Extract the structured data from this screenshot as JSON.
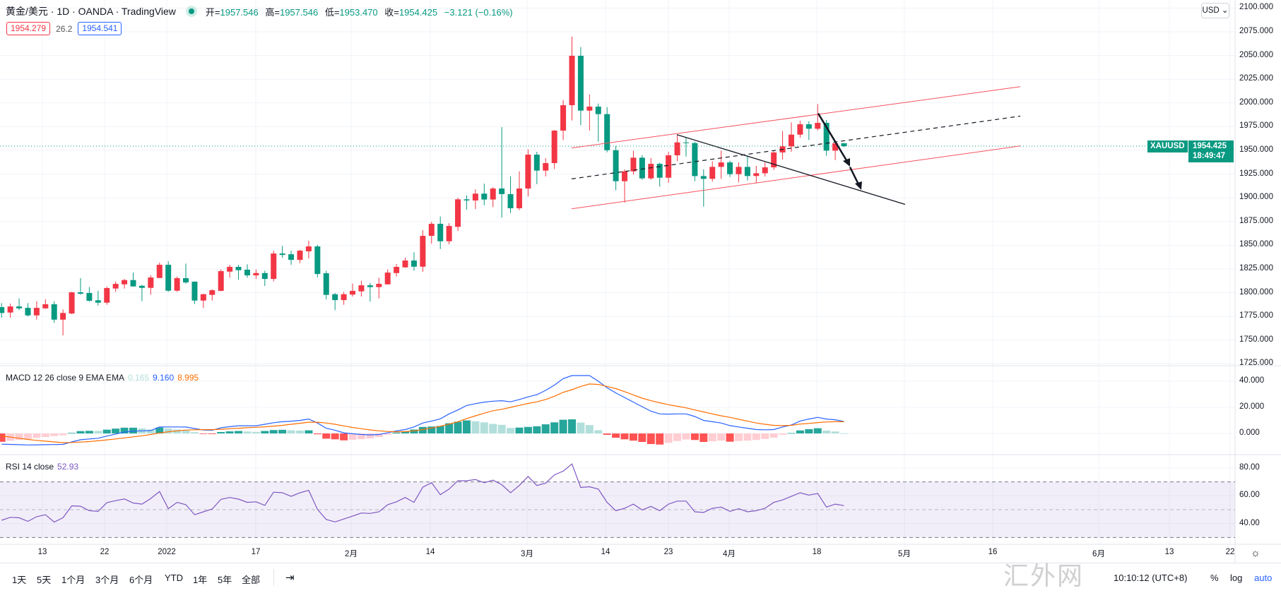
{
  "header": {
    "title": "黄金/美元 · 1D · OANDA · TradingView",
    "open_label": "开=",
    "open": "1957.546",
    "high_label": "高=",
    "high": "1957.546",
    "low_label": "低=",
    "low": "1953.470",
    "close_label": "收=",
    "close": "1954.425",
    "change": "−3.121 (−0.16%)",
    "bid": "1954.279",
    "spread": "26.2",
    "ask": "1954.541",
    "market_status_icon": "market-open-dot"
  },
  "price_axis": {
    "currency": "USD",
    "labels": [
      "2100.000",
      "2075.000",
      "2050.000",
      "2025.000",
      "2000.000",
      "1975.000",
      "1950.000",
      "1925.000",
      "1900.000",
      "1875.000",
      "1850.000",
      "1825.000",
      "1800.000",
      "1775.000",
      "1750.000",
      "1725.000"
    ],
    "symbol_tag": "XAUUSD",
    "last_price": "1954.425",
    "countdown": "18:49:47"
  },
  "macd": {
    "title": "MACD 12 26 close 9 EMA EMA",
    "hist_value": "0.165",
    "macd_value": "9.160",
    "signal_value": "8.995",
    "axis_labels": [
      "40.000",
      "20.000",
      "0.000"
    ]
  },
  "rsi": {
    "title": "RSI 14 close",
    "value": "52.93",
    "axis_labels": [
      "80.00",
      "60.00",
      "40.00"
    ]
  },
  "time_axis": [
    "13",
    "22",
    "2022",
    "17",
    "2月",
    "14",
    "3月",
    "14",
    "23",
    "4月",
    "18",
    "5月",
    "16",
    "6月",
    "13",
    "22"
  ],
  "toolbar": {
    "ranges": [
      "1天",
      "5天",
      "1个月",
      "3个月",
      "6个月",
      "YTD",
      "1年",
      "5年",
      "全部"
    ],
    "date_range_icon": "⇥",
    "clock": "10:10:12 (UTC+8)",
    "percent": "%",
    "log": "log",
    "auto": "auto"
  },
  "watermark": "汇外网",
  "colors": {
    "up": "#F23645",
    "down": "#089981",
    "macd": "#2962FF",
    "signal": "#FF6D00",
    "rsi": "#7E57C2",
    "channel": "#F7525F"
  },
  "chart_data": {
    "type": "candlestick",
    "symbol": "XAUUSD",
    "interval": "1D",
    "ylim": [
      1715,
      2110
    ],
    "candles": [
      [
        1784.8,
        1789,
        1773.6,
        1778.6
      ],
      [
        1779.1,
        1788.5,
        1773.6,
        1785.5
      ],
      [
        1785.5,
        1794,
        1781.6,
        1783.5
      ],
      [
        1784,
        1789,
        1774.9,
        1776.1
      ],
      [
        1776.1,
        1791,
        1771.6,
        1784
      ],
      [
        1783.5,
        1793,
        1783,
        1787.8
      ],
      [
        1787.8,
        1791,
        1768.2,
        1771.6
      ],
      [
        1771.6,
        1782.3,
        1755,
        1778.6
      ],
      [
        1778.1,
        1800.9,
        1777.3,
        1800.4
      ],
      [
        1800.4,
        1815.3,
        1797.9,
        1798.9
      ],
      [
        1799.7,
        1805.9,
        1790.5,
        1791.5
      ],
      [
        1792,
        1801.9,
        1786.5,
        1789.5
      ],
      [
        1789.5,
        1806.4,
        1787.3,
        1804.9
      ],
      [
        1804.4,
        1811.8,
        1800.9,
        1809.3
      ],
      [
        1808.8,
        1814.5,
        1804.4,
        1813.3
      ],
      [
        1813.3,
        1821.2,
        1806.4,
        1806.6
      ],
      [
        1807.3,
        1808.3,
        1791,
        1805.1
      ],
      [
        1805.1,
        1818.3,
        1797.9,
        1816
      ],
      [
        1815.5,
        1831.7,
        1815.5,
        1829.4
      ],
      [
        1829.4,
        1833.1,
        1800.9,
        1802.1
      ],
      [
        1802.1,
        1817,
        1800.9,
        1815.3
      ],
      [
        1815.3,
        1830.7,
        1809.6,
        1810.8
      ],
      [
        1811.6,
        1812,
        1788,
        1791.7
      ],
      [
        1791.7,
        1798.8,
        1784,
        1798.4
      ],
      [
        1797.7,
        1803.4,
        1791.7,
        1802.6
      ],
      [
        1801.9,
        1824.5,
        1801.5,
        1822.7
      ],
      [
        1822.2,
        1829.4,
        1815.8,
        1827.2
      ],
      [
        1827.2,
        1829.4,
        1813.8,
        1823.7
      ],
      [
        1824.2,
        1829.9,
        1815.8,
        1818.3
      ],
      [
        1818.3,
        1824.5,
        1814.5,
        1820.7
      ],
      [
        1820.7,
        1823.2,
        1807.1,
        1814.5
      ],
      [
        1814.5,
        1844.3,
        1812,
        1841.3
      ],
      [
        1841.3,
        1849.3,
        1836.9,
        1839.8
      ],
      [
        1840.5,
        1844.3,
        1829.4,
        1834.6
      ],
      [
        1834.6,
        1845,
        1831.2,
        1844.3
      ],
      [
        1843.6,
        1854.7,
        1836.1,
        1848.8
      ],
      [
        1848.8,
        1850.5,
        1816.3,
        1819.7
      ],
      [
        1820.5,
        1823.2,
        1793,
        1797.7
      ],
      [
        1798.4,
        1799.7,
        1781.6,
        1792.2
      ],
      [
        1792.2,
        1800.9,
        1787.3,
        1798.4
      ],
      [
        1798,
        1809.6,
        1795.9,
        1801.9
      ],
      [
        1801.4,
        1812.6,
        1795.9,
        1807.8
      ],
      [
        1807.8,
        1810.3,
        1790.5,
        1805.9
      ],
      [
        1805.9,
        1815.8,
        1794,
        1809.3
      ],
      [
        1808.8,
        1824.5,
        1808.5,
        1821.2
      ],
      [
        1820.7,
        1830.2,
        1817,
        1827.2
      ],
      [
        1826.7,
        1836.9,
        1826.2,
        1833.9
      ],
      [
        1833.9,
        1842.6,
        1823.2,
        1827.4
      ],
      [
        1827.4,
        1865.9,
        1822,
        1859.9
      ],
      [
        1859.9,
        1874.8,
        1851.7,
        1872.6
      ],
      [
        1872.6,
        1880.3,
        1846,
        1854.2
      ],
      [
        1854.2,
        1873.3,
        1851,
        1870.3
      ],
      [
        1869.4,
        1900,
        1865,
        1898.4
      ],
      [
        1898.4,
        1902.6,
        1887.6,
        1897.2
      ],
      [
        1897.2,
        1908.8,
        1888.2,
        1904.4
      ],
      [
        1904.4,
        1915,
        1892.2,
        1898.2
      ],
      [
        1898.2,
        1911.3,
        1890.2,
        1909.8
      ],
      [
        1909.8,
        1974.5,
        1879,
        1903.9
      ],
      [
        1903.9,
        1922.5,
        1884,
        1889
      ],
      [
        1889,
        1927.9,
        1887,
        1909.8
      ],
      [
        1909.8,
        1951,
        1901.4,
        1945.5
      ],
      [
        1945.5,
        1948.5,
        1914.5,
        1928.7
      ],
      [
        1928.7,
        1941.8,
        1922.5,
        1936.6
      ],
      [
        1936.6,
        1971.5,
        1930.4,
        1970.8
      ],
      [
        1970.8,
        2003,
        1960.9,
        1997.6
      ],
      [
        1997.6,
        2070,
        1981.5,
        2049.7
      ],
      [
        2049.7,
        2058.9,
        1976.5,
        1991.9
      ],
      [
        1991.9,
        2008.8,
        1970.8,
        1996.1
      ],
      [
        1996.1,
        1999.3,
        1959.2,
        1988.2
      ],
      [
        1988.2,
        1995.6,
        1948,
        1950.2
      ],
      [
        1950.2,
        1954.7,
        1908,
        1917.5
      ],
      [
        1917.5,
        1929.9,
        1895,
        1927.9
      ],
      [
        1927.9,
        1949.7,
        1924.4,
        1942.3
      ],
      [
        1942.3,
        1945,
        1919,
        1920.5
      ],
      [
        1920.5,
        1941.8,
        1919,
        1935.8
      ],
      [
        1935.8,
        1937,
        1911.8,
        1921.2
      ],
      [
        1921.2,
        1948.5,
        1915.8,
        1944.8
      ],
      [
        1944.8,
        1965.9,
        1938.6,
        1958.4
      ],
      [
        1958.4,
        1963.9,
        1943.5,
        1957.7
      ],
      [
        1957.7,
        1959,
        1917.5,
        1922.9
      ],
      [
        1922.9,
        1930,
        1890.7,
        1920
      ],
      [
        1920,
        1938.6,
        1917,
        1932.6
      ],
      [
        1932.6,
        1949.7,
        1920,
        1937.3
      ],
      [
        1937.3,
        1939,
        1922,
        1924.9
      ],
      [
        1924.9,
        1937.3,
        1916.3,
        1932.6
      ],
      [
        1932.6,
        1944.8,
        1918.2,
        1923
      ],
      [
        1923,
        1933.6,
        1915.8,
        1925.9
      ],
      [
        1925.9,
        1937.3,
        1922.5,
        1932.1
      ],
      [
        1932.1,
        1949,
        1929.4,
        1947.8
      ],
      [
        1947.8,
        1970.3,
        1940.3,
        1954.2
      ],
      [
        1954.2,
        1979.5,
        1948.5,
        1966.6
      ],
      [
        1966.6,
        1981.2,
        1963.4,
        1977.5
      ],
      [
        1977.5,
        1980.7,
        1960.9,
        1972.8
      ],
      [
        1972.8,
        1998.8,
        1971,
        1979
      ],
      [
        1979,
        1982,
        1944.3,
        1949.7
      ],
      [
        1949.7,
        1959,
        1939.8,
        1957.5
      ],
      [
        1957.546,
        1957.546,
        1953.47,
        1954.425
      ]
    ],
    "macd_line": [
      -8.2,
      -8.4,
      -8.6,
      -8.8,
      -8.7,
      -8.6,
      -8.5,
      -8.4,
      -6.5,
      -4.8,
      -4.2,
      -3.7,
      -2,
      -0.5,
      1,
      1.8,
      2,
      2.2,
      4.9,
      5,
      5,
      4.9,
      3.8,
      2.6,
      2.5,
      4.3,
      5.2,
      5.9,
      5.9,
      5.9,
      7,
      8.2,
      9,
      9.4,
      10,
      11,
      8,
      4,
      2.5,
      0.5,
      -0.2,
      -0.8,
      -1.1,
      -0.8,
      0.5,
      2,
      3,
      5,
      8,
      9.5,
      11.2,
      15,
      18,
      21.4,
      22.8,
      24,
      24.7,
      25.1,
      24.2,
      26,
      28,
      29.7,
      33,
      37,
      42,
      44.3,
      44.3,
      44.3,
      40,
      35,
      31,
      27.5,
      24,
      20.5,
      17,
      15,
      14.8,
      15,
      15,
      13,
      10,
      9,
      8,
      6,
      5,
      4,
      3,
      2.8,
      3,
      5,
      6.5,
      9.5,
      11,
      12.3,
      11,
      10.5,
      9.16
    ],
    "signal_line": [
      -1.8,
      -2.8,
      -3.6,
      -4.6,
      -5.3,
      -5.9,
      -6.5,
      -7,
      -6.9,
      -6.6,
      -6.2,
      -5.6,
      -4.9,
      -4.2,
      -3.4,
      -2.6,
      -1.8,
      -0.8,
      0.4,
      1.3,
      2,
      2.6,
      2.8,
      2.9,
      3,
      3.2,
      3.6,
      4,
      4.4,
      4.7,
      5.1,
      5.6,
      6.2,
      7,
      7.8,
      8.6,
      8.6,
      8,
      7,
      5.8,
      4.6,
      3.6,
      2.7,
      2,
      1.5,
      1.3,
      1.4,
      2,
      3,
      4.2,
      5.5,
      7.2,
      9,
      11.4,
      13.5,
      15.5,
      17.4,
      18.5,
      20,
      21.5,
      23,
      24.2,
      26,
      28.5,
      31.5,
      33.5,
      36,
      37.9,
      37.5,
      36,
      34.3,
      32,
      29.5,
      27,
      25.1,
      23.5,
      22,
      20.8,
      19.6,
      18,
      16.5,
      15,
      13.5,
      12.3,
      10.8,
      9.5,
      8,
      7,
      6.2,
      6,
      6.2,
      7.2,
      7.7,
      8.3,
      8.8,
      9,
      8.995
    ],
    "rsi": [
      42.4,
      44.5,
      44.2,
      41.6,
      45,
      46.4,
      41.1,
      44.2,
      52.8,
      52.5,
      49.3,
      48.8,
      55,
      56.5,
      57.7,
      54.8,
      54,
      58,
      63.1,
      50.7,
      55.3,
      53.6,
      46.4,
      48.5,
      50.5,
      57.4,
      58.8,
      57.6,
      55.3,
      55.7,
      53.1,
      62.6,
      62.2,
      59.6,
      62.2,
      63.9,
      50.2,
      43,
      41.2,
      43.3,
      45.4,
      47.6,
      47.3,
      48.5,
      53.6,
      55.7,
      58.8,
      55.3,
      66.2,
      69.4,
      60.8,
      64.8,
      70.8,
      70.8,
      71.7,
      69.4,
      71.2,
      68,
      62.2,
      67.4,
      73.9,
      67.4,
      69.1,
      75.1,
      77.7,
      82.9,
      66,
      66.5,
      64.8,
      55.3,
      49.3,
      51,
      54,
      49.8,
      52.4,
      49.3,
      54,
      56.2,
      56.2,
      48.5,
      48,
      51,
      51.9,
      48.8,
      50.7,
      48.5,
      49.3,
      51,
      55.3,
      57,
      59.6,
      62.2,
      60.5,
      61.7,
      51.9,
      54,
      52.93
    ],
    "rsi_bands": [
      30,
      50,
      70
    ],
    "macd_ylim": [
      -12,
      48
    ],
    "rsi_ylim": [
      25,
      88
    ]
  }
}
